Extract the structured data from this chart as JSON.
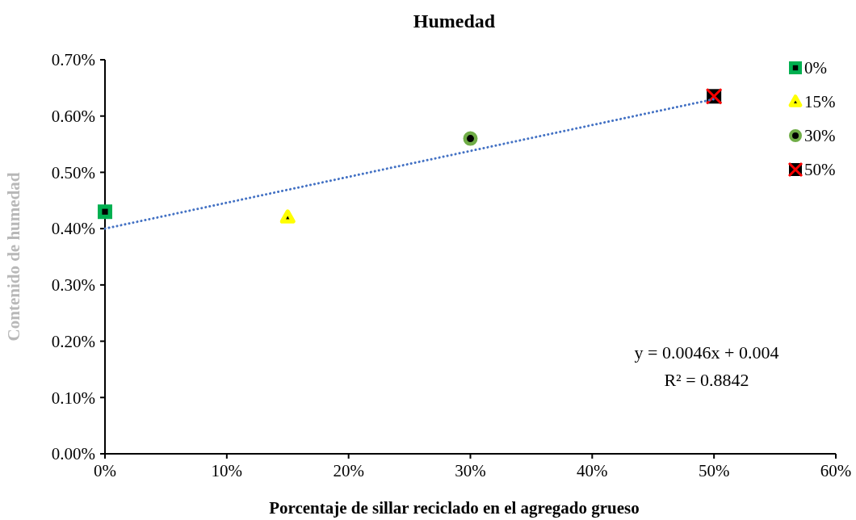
{
  "chart_data": {
    "type": "scatter",
    "title": "Humedad",
    "xlabel": "Porcentaje de sillar  reciclado en el agregado grueso",
    "ylabel": "Contenido de humedad",
    "xlim": [
      0,
      60
    ],
    "xticks": [
      {
        "value": 0,
        "label": "0%"
      },
      {
        "value": 10,
        "label": "10%"
      },
      {
        "value": 20,
        "label": "20%"
      },
      {
        "value": 30,
        "label": "30%"
      },
      {
        "value": 40,
        "label": "40%"
      },
      {
        "value": 50,
        "label": "50%"
      },
      {
        "value": 60,
        "label": "60%"
      }
    ],
    "ylim": [
      0,
      0.7
    ],
    "yticks": [
      {
        "value": 0,
        "label": "0.00%"
      },
      {
        "value": 0.1,
        "label": "0.10%"
      },
      {
        "value": 0.2,
        "label": "0.20%"
      },
      {
        "value": 0.3,
        "label": "0.30%"
      },
      {
        "value": 0.4,
        "label": "0.40%"
      },
      {
        "value": 0.5,
        "label": "0.50%"
      },
      {
        "value": 0.6,
        "label": "0.60%"
      },
      {
        "value": 0.7,
        "label": "0.70%"
      }
    ],
    "series": [
      {
        "name": "0%",
        "marker": "square",
        "color": "#00b050",
        "x": [
          0
        ],
        "values": [
          0.43
        ]
      },
      {
        "name": "15%",
        "marker": "triangle",
        "color": "#ffff00",
        "x": [
          15
        ],
        "values": [
          0.42
        ]
      },
      {
        "name": "30%",
        "marker": "circle",
        "color": "#70ad47",
        "x": [
          30
        ],
        "values": [
          0.56
        ]
      },
      {
        "name": "50%",
        "marker": "cross",
        "color": "#ff0000",
        "x": [
          50
        ],
        "values": [
          0.635
        ]
      },
      {
        "type": "line",
        "color": "#4472c4",
        "line_style": "dotted",
        "marker": "none",
        "x": [
          0,
          50
        ],
        "values": [
          0.4,
          0.63
        ]
      }
    ],
    "legend": "top right",
    "grid": false,
    "annotations": [
      "y = 0.0046x + 0.004",
      "R² = 0.8842"
    ]
  }
}
